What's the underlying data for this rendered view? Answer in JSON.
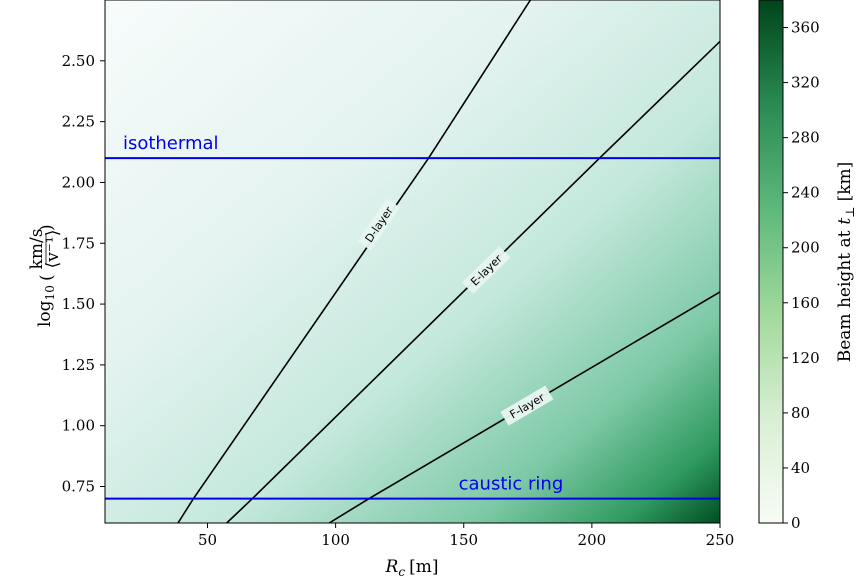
{
  "chart_data": {
    "type": "heatmap",
    "xlabel": "R_c [m]",
    "ylabel": "log10((km/s)/<v^-1>)",
    "xlim": [
      10,
      250
    ],
    "ylim": [
      0.6,
      2.75
    ],
    "x_ticks": [
      "50",
      "100",
      "150",
      "200",
      "250"
    ],
    "y_ticks": [
      "0.75",
      "1.00",
      "1.25",
      "1.50",
      "1.75",
      "2.00",
      "2.25",
      "2.50"
    ],
    "colormap": "Greens",
    "colorbar": {
      "label": "Beam height at t_⊥ [km]",
      "range": [
        0,
        380
      ],
      "ticks": [
        "0",
        "40",
        "80",
        "120",
        "160",
        "200",
        "240",
        "280",
        "320",
        "360"
      ]
    },
    "contours": [
      {
        "name": "D-layer",
        "points": [
          [
            38.5,
            0.6
          ],
          [
            44.5,
            0.7
          ],
          [
            136.3,
            2.1
          ],
          [
            176,
            2.75
          ]
        ]
      },
      {
        "name": "E-layer",
        "points": [
          [
            57.5,
            0.6
          ],
          [
            67.5,
            0.7
          ],
          [
            203,
            2.1
          ],
          [
            250,
            2.58
          ]
        ]
      },
      {
        "name": "F-layer",
        "points": [
          [
            97.5,
            0.6
          ],
          [
            113,
            0.7
          ],
          [
            250,
            1.55
          ]
        ]
      }
    ],
    "hlines": [
      {
        "name": "isothermal",
        "y": 2.1,
        "color": "#0000ee"
      },
      {
        "name": "caustic ring",
        "y": 0.7,
        "color": "#0000ee"
      }
    ],
    "grid": false
  },
  "labels": {
    "xlabel_main": "R",
    "xlabel_sub": "c",
    "xlabel_unit": "[m]",
    "ylabel_log": "log",
    "ylabel_log_sub": "10",
    "ylabel_num": "km/s",
    "ylabel_den": "⟨v⁻¹⟩",
    "cbar_label": "Beam height at",
    "cbar_t": "t",
    "cbar_sub": "⊥",
    "cbar_unit": "[km]"
  }
}
